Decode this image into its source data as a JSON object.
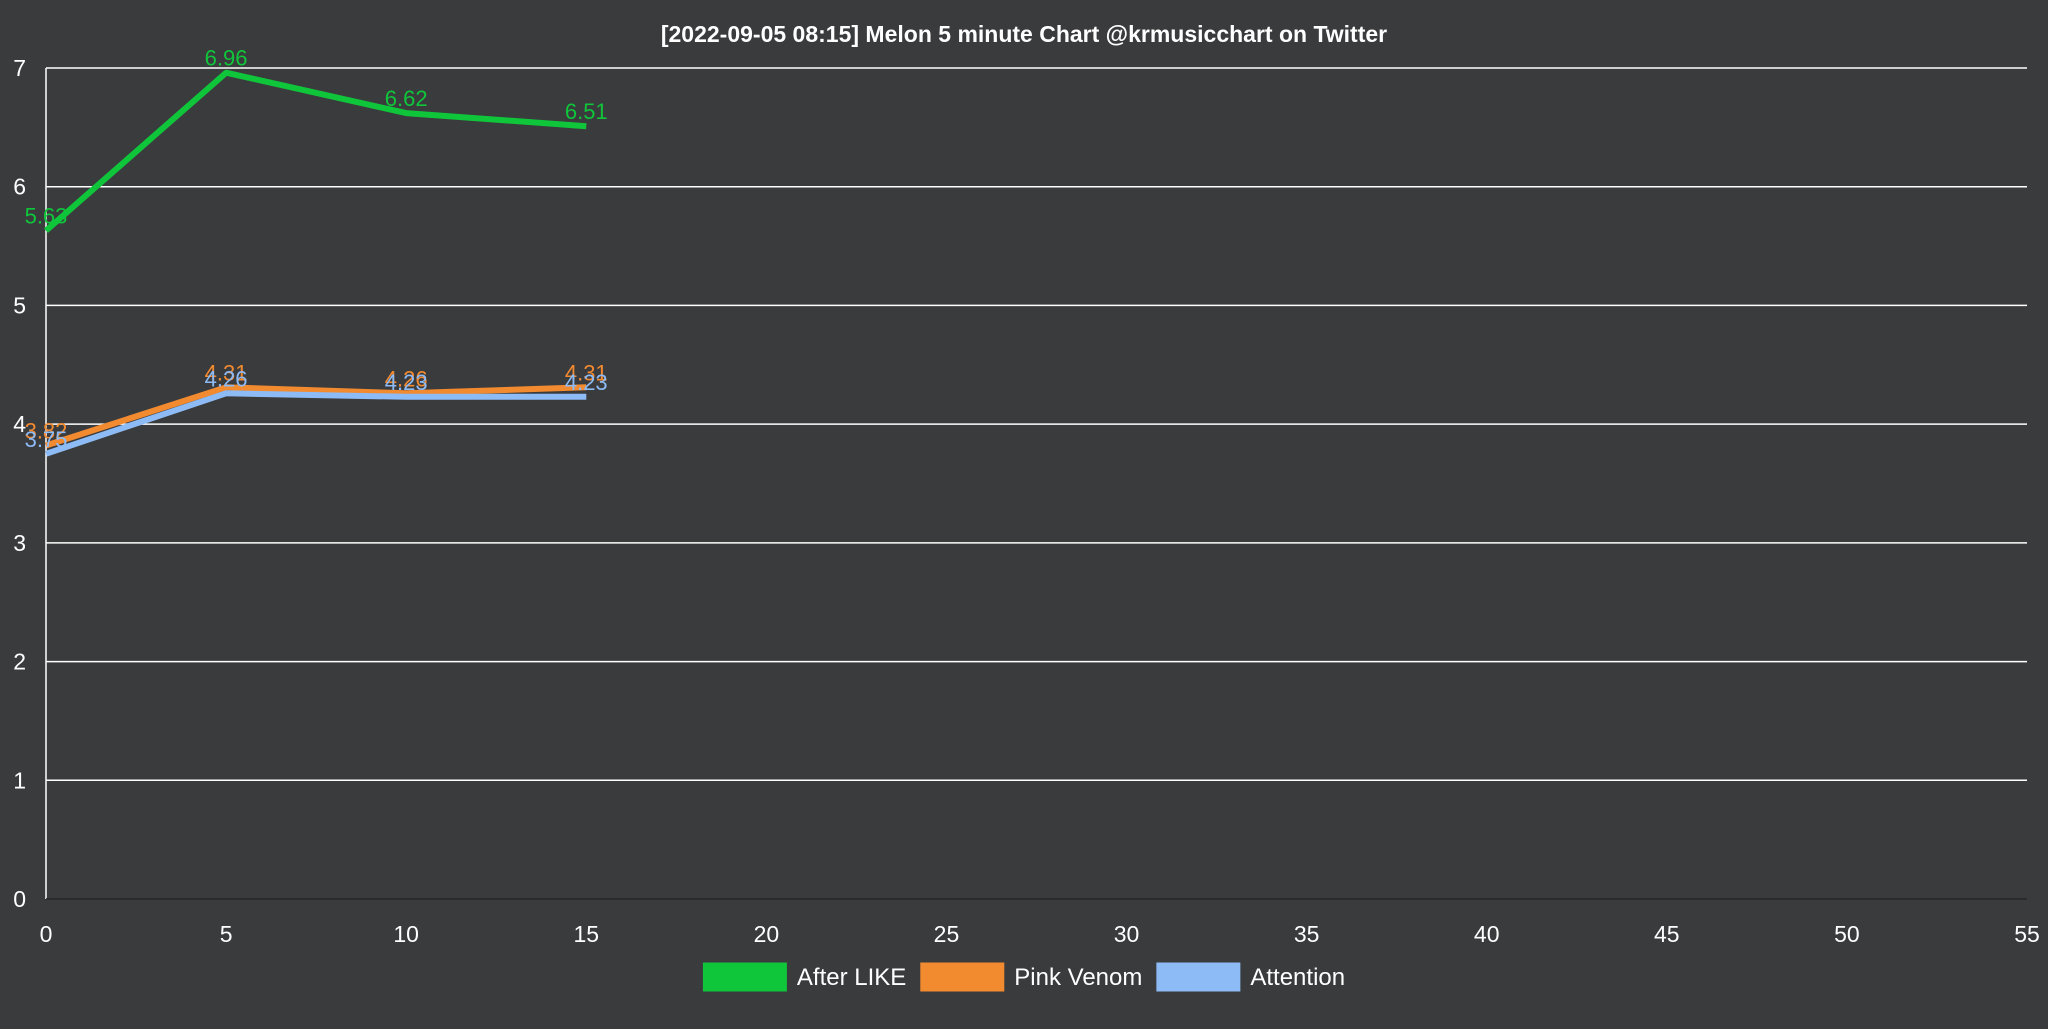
{
  "chart_data": {
    "type": "line",
    "title": "[2022-09-05 08:15]  Melon 5 minute Chart  @krmusicchart on Twitter",
    "xlabel": "",
    "ylabel": "",
    "xlim": [
      0,
      55
    ],
    "ylim": [
      0,
      7
    ],
    "x_ticks": [
      "0",
      "5",
      "10",
      "15",
      "20",
      "25",
      "30",
      "35",
      "40",
      "45",
      "50",
      "55"
    ],
    "y_ticks": [
      "0",
      "1",
      "2",
      "3",
      "4",
      "5",
      "6",
      "7"
    ],
    "grid": true,
    "legend_position": "bottom",
    "x": [
      0,
      5,
      10,
      15
    ],
    "series": [
      {
        "name": "After LIKE",
        "color": "#0fc63b",
        "values": [
          5.63,
          6.96,
          6.62,
          6.51
        ],
        "labels": [
          "5.63",
          "6.96",
          "6.62",
          "6.51"
        ]
      },
      {
        "name": "Pink Venom",
        "color": "#f28a30",
        "values": [
          3.82,
          4.31,
          4.26,
          4.31
        ],
        "labels": [
          "3.82",
          "4.31",
          "4.26",
          "4.31"
        ]
      },
      {
        "name": "Attention",
        "color": "#8dbbf5",
        "values": [
          3.75,
          4.26,
          4.23,
          4.23
        ],
        "labels": [
          "3.75",
          "4.26",
          "4.23",
          "4.23"
        ]
      }
    ]
  }
}
